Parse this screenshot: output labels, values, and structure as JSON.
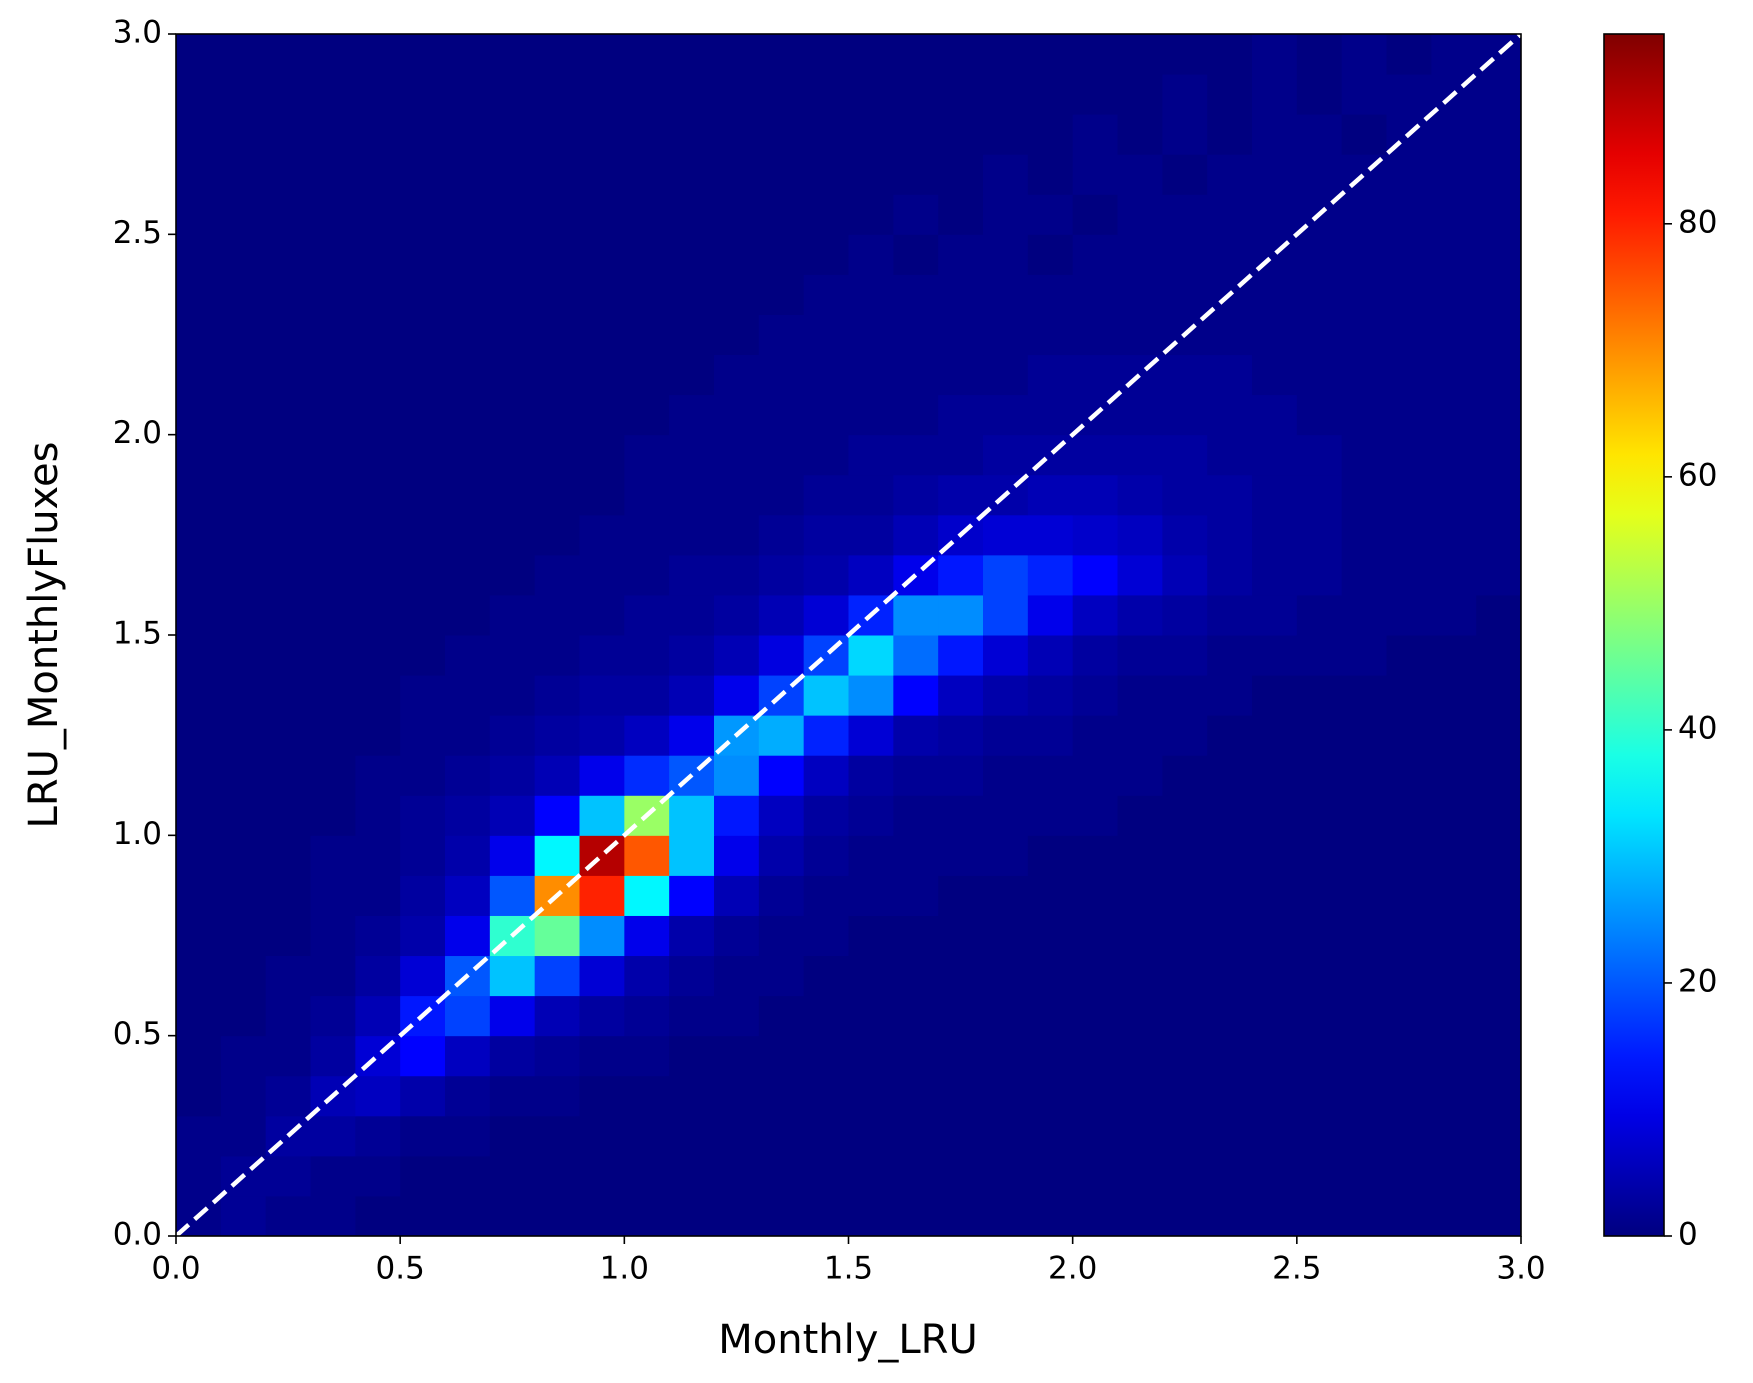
{
  "chart_data": {
    "type": "histogram2d",
    "x_label": "Monthly_LRU",
    "y_label": "LRU_MonthlyFluxes",
    "colormap": "jet",
    "clim": [
      0,
      95
    ],
    "cticks": [
      0,
      20,
      40,
      60,
      80
    ],
    "xlim": [
      0,
      3
    ],
    "ylim": [
      0,
      3
    ],
    "xticks": [
      {
        "value": 0,
        "label": "0.0"
      },
      0.5,
      {
        "value": 1,
        "label": "1.0"
      },
      1.5,
      {
        "value": 2,
        "label": "2.0"
      },
      2.5,
      {
        "value": 3,
        "label": "3.0"
      }
    ],
    "yticks": [
      {
        "value": 0,
        "label": "0.0"
      },
      0.5,
      {
        "value": 1,
        "label": "1.0"
      },
      1.5,
      {
        "value": 2,
        "label": "2.0"
      },
      2.5,
      {
        "value": 3,
        "label": "3.0"
      }
    ],
    "x_bins": [
      0,
      0.1,
      0.2,
      0.3,
      0.4,
      0.5,
      0.6,
      0.7,
      0.8,
      0.9,
      1,
      1.1,
      1.2,
      1.3,
      1.4,
      1.5,
      1.6,
      1.7,
      1.8,
      1.9,
      2,
      2.1,
      2.2,
      2.3,
      2.4,
      2.5,
      2.6,
      2.7,
      2.8,
      2.9,
      3
    ],
    "y_bins": [
      0,
      0.1,
      0.2,
      0.3,
      0.4,
      0.5,
      0.6,
      0.7,
      0.8,
      0.9,
      1,
      1.1,
      1.2,
      1.3,
      1.4,
      1.5,
      1.6,
      1.7,
      1.8,
      1.9,
      2,
      2.1,
      2.2,
      2.3,
      2.4,
      2.5,
      2.6,
      2.7,
      2.8,
      2.9,
      3
    ],
    "z": [
      [
        1,
        2,
        1,
        1,
        0,
        0,
        0,
        0,
        0,
        0,
        0,
        0,
        0,
        0,
        0,
        0,
        0,
        0,
        0,
        0,
        0,
        0,
        0,
        0,
        0,
        0,
        0,
        0,
        0,
        0
      ],
      [
        1,
        2,
        2,
        1,
        1,
        0,
        0,
        0,
        0,
        0,
        0,
        0,
        0,
        0,
        0,
        0,
        0,
        0,
        0,
        0,
        0,
        0,
        0,
        0,
        0,
        0,
        0,
        0,
        0,
        0
      ],
      [
        1,
        1,
        3,
        3,
        2,
        1,
        1,
        0,
        0,
        0,
        0,
        0,
        0,
        0,
        0,
        0,
        0,
        0,
        0,
        0,
        0,
        0,
        0,
        0,
        0,
        0,
        0,
        0,
        0,
        0
      ],
      [
        0,
        1,
        2,
        5,
        6,
        4,
        2,
        1,
        1,
        0,
        0,
        0,
        0,
        0,
        0,
        0,
        0,
        0,
        0,
        0,
        0,
        0,
        0,
        0,
        0,
        0,
        0,
        0,
        0,
        0
      ],
      [
        0,
        1,
        1,
        3,
        8,
        12,
        6,
        3,
        2,
        1,
        1,
        0,
        0,
        0,
        0,
        0,
        0,
        0,
        0,
        0,
        0,
        0,
        0,
        0,
        0,
        0,
        0,
        0,
        0,
        0
      ],
      [
        0,
        0,
        1,
        2,
        5,
        14,
        18,
        10,
        5,
        3,
        2,
        1,
        1,
        0,
        0,
        0,
        0,
        0,
        0,
        0,
        0,
        0,
        0,
        0,
        0,
        0,
        0,
        0,
        0,
        0
      ],
      [
        0,
        0,
        1,
        1,
        3,
        8,
        20,
        30,
        18,
        8,
        4,
        2,
        1,
        1,
        0,
        0,
        0,
        0,
        0,
        0,
        0,
        0,
        0,
        0,
        0,
        0,
        0,
        0,
        0,
        0
      ],
      [
        0,
        0,
        0,
        1,
        2,
        4,
        10,
        40,
        45,
        25,
        10,
        4,
        2,
        1,
        1,
        0,
        0,
        0,
        0,
        0,
        0,
        0,
        0,
        0,
        0,
        0,
        0,
        0,
        0,
        0
      ],
      [
        0,
        0,
        0,
        1,
        1,
        3,
        6,
        20,
        70,
        80,
        35,
        12,
        5,
        2,
        1,
        1,
        1,
        0,
        0,
        0,
        0,
        0,
        0,
        0,
        0,
        0,
        0,
        0,
        0,
        0
      ],
      [
        0,
        0,
        0,
        1,
        1,
        2,
        4,
        10,
        35,
        90,
        75,
        30,
        10,
        4,
        2,
        1,
        1,
        1,
        1,
        0,
        0,
        0,
        0,
        0,
        0,
        0,
        0,
        0,
        0,
        0
      ],
      [
        0,
        0,
        0,
        0,
        1,
        2,
        3,
        5,
        12,
        30,
        50,
        30,
        14,
        6,
        3,
        2,
        1,
        1,
        1,
        1,
        1,
        0,
        0,
        0,
        0,
        0,
        0,
        0,
        0,
        0
      ],
      [
        0,
        0,
        0,
        0,
        1,
        1,
        2,
        3,
        5,
        10,
        16,
        20,
        25,
        12,
        6,
        3,
        2,
        2,
        1,
        1,
        1,
        1,
        0,
        0,
        0,
        0,
        0,
        0,
        0,
        0
      ],
      [
        0,
        0,
        0,
        0,
        0,
        1,
        1,
        2,
        3,
        4,
        6,
        10,
        26,
        28,
        15,
        8,
        4,
        3,
        2,
        2,
        1,
        1,
        1,
        0,
        0,
        0,
        0,
        0,
        0,
        0
      ],
      [
        0,
        0,
        0,
        0,
        0,
        1,
        1,
        1,
        2,
        3,
        3,
        5,
        10,
        18,
        30,
        25,
        12,
        6,
        4,
        3,
        2,
        1,
        1,
        1,
        0,
        0,
        0,
        0,
        0,
        0
      ],
      [
        0,
        0,
        0,
        0,
        0,
        0,
        1,
        1,
        1,
        2,
        2,
        3,
        5,
        9,
        18,
        32,
        22,
        14,
        8,
        5,
        3,
        2,
        2,
        1,
        1,
        1,
        1,
        0,
        0,
        0
      ],
      [
        0,
        0,
        0,
        0,
        0,
        0,
        0,
        1,
        1,
        1,
        2,
        2,
        3,
        5,
        8,
        15,
        25,
        25,
        18,
        10,
        6,
        4,
        3,
        2,
        2,
        1,
        1,
        1,
        1,
        0
      ],
      [
        0,
        0,
        0,
        0,
        0,
        0,
        0,
        0,
        1,
        1,
        1,
        2,
        2,
        3,
        4,
        6,
        10,
        14,
        18,
        15,
        12,
        8,
        5,
        3,
        2,
        2,
        1,
        1,
        1,
        1
      ],
      [
        0,
        0,
        0,
        0,
        0,
        0,
        0,
        0,
        0,
        1,
        1,
        1,
        1,
        2,
        3,
        3,
        5,
        7,
        8,
        8,
        7,
        6,
        4,
        3,
        2,
        2,
        1,
        1,
        1,
        1
      ],
      [
        0,
        0,
        0,
        0,
        0,
        0,
        0,
        0,
        0,
        0,
        1,
        1,
        1,
        1,
        2,
        2,
        3,
        4,
        4,
        5,
        5,
        4,
        3,
        3,
        2,
        2,
        1,
        1,
        1,
        1
      ],
      [
        0,
        0,
        0,
        0,
        0,
        0,
        0,
        0,
        0,
        0,
        1,
        1,
        1,
        1,
        1,
        2,
        2,
        2,
        3,
        3,
        3,
        3,
        3,
        2,
        2,
        2,
        1,
        1,
        1,
        1
      ],
      [
        0,
        0,
        0,
        0,
        0,
        0,
        0,
        0,
        0,
        0,
        0,
        1,
        1,
        1,
        1,
        1,
        1,
        2,
        2,
        2,
        2,
        2,
        2,
        2,
        2,
        1,
        1,
        1,
        1,
        1
      ],
      [
        0,
        0,
        0,
        0,
        0,
        0,
        0,
        0,
        0,
        0,
        0,
        0,
        1,
        1,
        1,
        1,
        1,
        1,
        1,
        2,
        2,
        2,
        2,
        2,
        1,
        1,
        1,
        1,
        1,
        1
      ],
      [
        0,
        0,
        0,
        0,
        0,
        0,
        0,
        0,
        0,
        0,
        0,
        0,
        0,
        1,
        1,
        1,
        1,
        1,
        1,
        1,
        1,
        1,
        1,
        1,
        1,
        1,
        1,
        1,
        1,
        1
      ],
      [
        0,
        0,
        0,
        0,
        0,
        0,
        0,
        0,
        0,
        0,
        0,
        0,
        0,
        0,
        1,
        1,
        1,
        1,
        1,
        1,
        1,
        1,
        1,
        1,
        1,
        1,
        1,
        1,
        1,
        1
      ],
      [
        0,
        0,
        0,
        0,
        0,
        0,
        0,
        0,
        0,
        0,
        0,
        0,
        0,
        0,
        0,
        1,
        0,
        1,
        1,
        0,
        1,
        1,
        1,
        1,
        1,
        1,
        1,
        1,
        1,
        1
      ],
      [
        0,
        0,
        0,
        0,
        0,
        0,
        0,
        0,
        0,
        0,
        0,
        0,
        0,
        0,
        0,
        0,
        1,
        0,
        1,
        1,
        0,
        1,
        1,
        1,
        1,
        1,
        1,
        1,
        1,
        1
      ],
      [
        0,
        0,
        0,
        0,
        0,
        0,
        0,
        0,
        0,
        0,
        0,
        0,
        0,
        0,
        0,
        0,
        0,
        0,
        1,
        0,
        1,
        1,
        0,
        1,
        1,
        1,
        1,
        1,
        1,
        1
      ],
      [
        0,
        0,
        0,
        0,
        0,
        0,
        0,
        0,
        0,
        0,
        0,
        0,
        0,
        0,
        0,
        0,
        0,
        0,
        0,
        0,
        1,
        0,
        1,
        0,
        1,
        1,
        0,
        1,
        1,
        1
      ],
      [
        0,
        0,
        0,
        0,
        0,
        0,
        0,
        0,
        0,
        0,
        0,
        0,
        0,
        0,
        0,
        0,
        0,
        0,
        0,
        0,
        0,
        0,
        1,
        0,
        1,
        0,
        1,
        1,
        1,
        1
      ],
      [
        0,
        0,
        0,
        0,
        0,
        0,
        0,
        0,
        0,
        0,
        0,
        0,
        0,
        0,
        0,
        0,
        0,
        0,
        0,
        0,
        0,
        0,
        0,
        0,
        1,
        0,
        1,
        0,
        1,
        1
      ]
    ],
    "reference_line": {
      "x": [
        0,
        3
      ],
      "y": [
        0,
        3
      ],
      "color": "#ffffff",
      "dashed": true
    }
  }
}
